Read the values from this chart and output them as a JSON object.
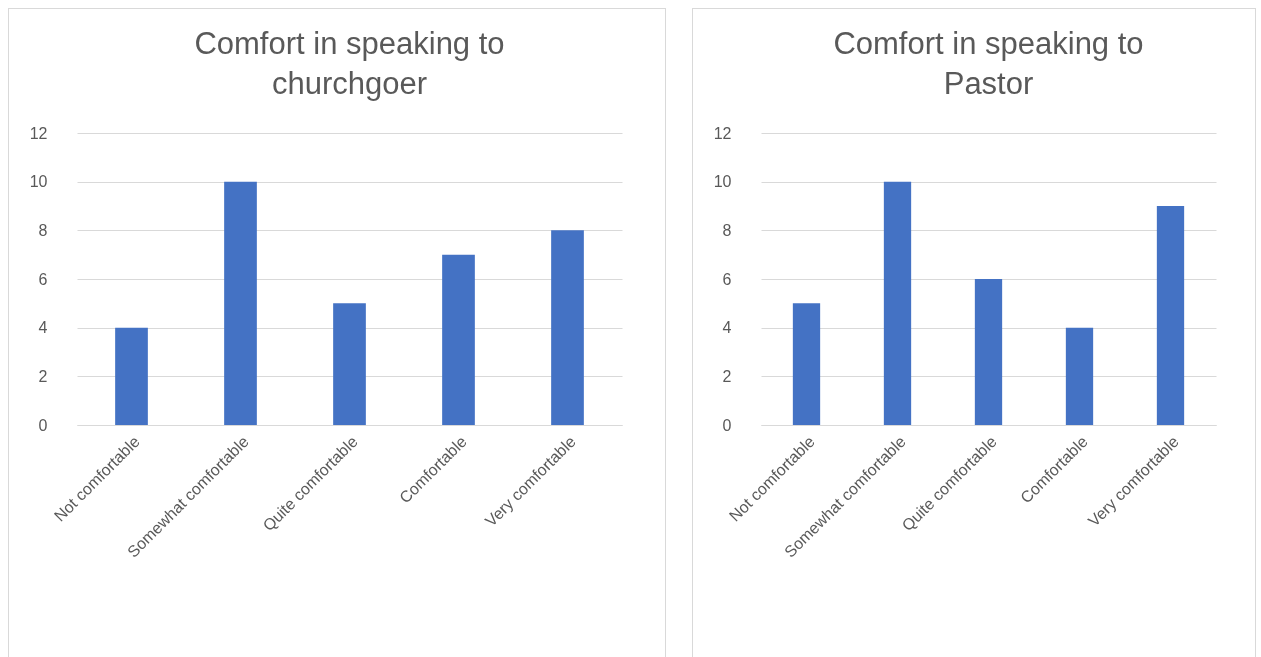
{
  "chart_data": [
    {
      "type": "bar",
      "title": "Comfort in speaking to churchgoer",
      "categories": [
        "Not comfortable",
        "Somewhat comfortable",
        "Quite comfortable",
        "Comfortable",
        "Very comfortable"
      ],
      "values": [
        4,
        10,
        5,
        7,
        8
      ],
      "color": "#4472c4",
      "ylim": [
        0,
        12
      ],
      "yticks": [
        0,
        2,
        4,
        6,
        8,
        10,
        12
      ],
      "grid": "y",
      "legend": false
    },
    {
      "type": "bar",
      "title": "Comfort in speaking to Pastor",
      "categories": [
        "Not comfortable",
        "Somewhat comfortable",
        "Quite comfortable",
        "Comfortable",
        "Very comfortable"
      ],
      "values": [
        5,
        10,
        6,
        4,
        9
      ],
      "color": "#4472c4",
      "ylim": [
        0,
        12
      ],
      "yticks": [
        0,
        2,
        4,
        6,
        8,
        10,
        12
      ],
      "grid": "y",
      "legend": false
    }
  ]
}
